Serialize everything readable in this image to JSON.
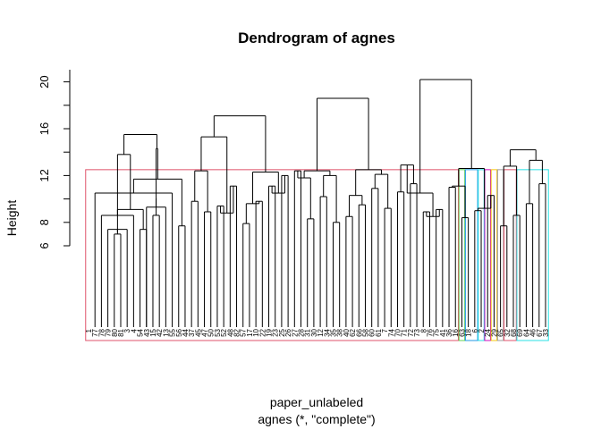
{
  "chart_data": {
    "type": "dendrogram",
    "title": "Dendrogram of agnes",
    "ylabel": "Height",
    "xlabel": "paper_unlabeled",
    "sub": "agnes (*, \"complete\")",
    "ylim": [
      6,
      20
    ],
    "yticks": [
      6,
      8,
      12,
      16,
      20
    ],
    "leaves": [
      "1",
      "77",
      "78",
      "79",
      "80",
      "81",
      "3",
      "4",
      "54",
      "43",
      "15",
      "42",
      "13",
      "55",
      "56",
      "44",
      "37",
      "45",
      "47",
      "50",
      "53",
      "52",
      "48",
      "82",
      "57",
      "17",
      "10",
      "22",
      "19",
      "23",
      "25",
      "26",
      "27",
      "28",
      "31",
      "30",
      "12",
      "34",
      "35",
      "38",
      "40",
      "62",
      "66",
      "58",
      "60",
      "61",
      "7",
      "74",
      "70",
      "71",
      "72",
      "73",
      "8",
      "76",
      "75",
      "41",
      "36",
      "16",
      "63",
      "18",
      "6",
      "2",
      "24",
      "29",
      "65",
      "32",
      "68",
      "69",
      "64",
      "46",
      "67",
      "33"
    ],
    "merges": [
      [
        4,
        5,
        7.0
      ],
      [
        3,
        6,
        7.4
      ],
      [
        2,
        7,
        8.6
      ],
      [
        8,
        9,
        7.4
      ],
      [
        10,
        11,
        8.6
      ],
      [
        9,
        12,
        9.3
      ],
      [
        1,
        13,
        10.5
      ],
      [
        14,
        15,
        7.7
      ],
      [
        16,
        17,
        9.8
      ],
      [
        18,
        19,
        8.9
      ],
      [
        20,
        21,
        9.4
      ],
      [
        22,
        23,
        11.1
      ],
      [
        24,
        25,
        7.9
      ],
      [
        26,
        27,
        9.8
      ],
      [
        28,
        29,
        11.1
      ],
      [
        30,
        31,
        12.0
      ],
      [
        32,
        33,
        12.4
      ],
      [
        34,
        35,
        8.3
      ],
      [
        36,
        37,
        10.2
      ],
      [
        38,
        39,
        8.0
      ],
      [
        40,
        41,
        8.5
      ],
      [
        42,
        43,
        9.5
      ],
      [
        44,
        45,
        10.9
      ],
      [
        46,
        47,
        9.2
      ],
      [
        48,
        49,
        10.6
      ],
      [
        50,
        51,
        11.3
      ],
      [
        52,
        53,
        8.9
      ],
      [
        54,
        55,
        9.1
      ],
      [
        56,
        57,
        11.0
      ],
      [
        58,
        59,
        8.4
      ],
      [
        60,
        61,
        9.0
      ],
      [
        62,
        63,
        10.3
      ],
      [
        64,
        65,
        7.7
      ],
      [
        66,
        67,
        8.6
      ],
      [
        68,
        69,
        9.6
      ],
      [
        70,
        71,
        11.3
      ],
      [
        72,
        73,
        7.1
      ],
      [
        74,
        75,
        9.1
      ],
      [
        76,
        77,
        10.1
      ],
      [
        78,
        79,
        11.7
      ],
      [
        80,
        81,
        12.4
      ],
      [
        82,
        83,
        8.8
      ],
      [
        84,
        85,
        9.6
      ],
      [
        86,
        87,
        10.5
      ],
      [
        88,
        89,
        11.8
      ],
      [
        90,
        91,
        12.0
      ],
      [
        92,
        93,
        10.3
      ],
      [
        94,
        95,
        12.1
      ],
      [
        96,
        97,
        12.9
      ],
      [
        98,
        99,
        8.5
      ],
      [
        100,
        101,
        11.1
      ],
      [
        102,
        103,
        9.2
      ],
      [
        104,
        105,
        12.8
      ],
      [
        106,
        107,
        13.3
      ],
      [
        108,
        109,
        13.8
      ],
      [
        110,
        111,
        14.3
      ],
      [
        112,
        113,
        15.3
      ],
      [
        114,
        115,
        12.3
      ],
      [
        116,
        117,
        12.4
      ],
      [
        118,
        119,
        12.5
      ],
      [
        120,
        121,
        10.5
      ],
      [
        122,
        123,
        12.6
      ],
      [
        124,
        125,
        14.2
      ],
      [
        126,
        127,
        15.5
      ],
      [
        128,
        129,
        17.1
      ],
      [
        130,
        131,
        18.6
      ],
      [
        132,
        133,
        20.2
      ]
    ],
    "rect_groups": [
      {
        "from": 0,
        "to": 57,
        "color": "#DF536B"
      },
      {
        "from": 58,
        "to": 58,
        "color": "#61D04F"
      },
      {
        "from": 59,
        "to": 60,
        "color": "#2297E6"
      },
      {
        "from": 61,
        "to": 61,
        "color": "#28E2E5"
      },
      {
        "from": 62,
        "to": 62,
        "color": "#CD0BBC"
      },
      {
        "from": 63,
        "to": 63,
        "color": "#F5C710"
      },
      {
        "from": 64,
        "to": 64,
        "color": "#9E9E9E"
      },
      {
        "from": 65,
        "to": 66,
        "color": "#DF536B"
      },
      {
        "from": 67,
        "to": 71,
        "color": "#28E2E5"
      }
    ],
    "rect_height": 12.5,
    "grid": false
  }
}
